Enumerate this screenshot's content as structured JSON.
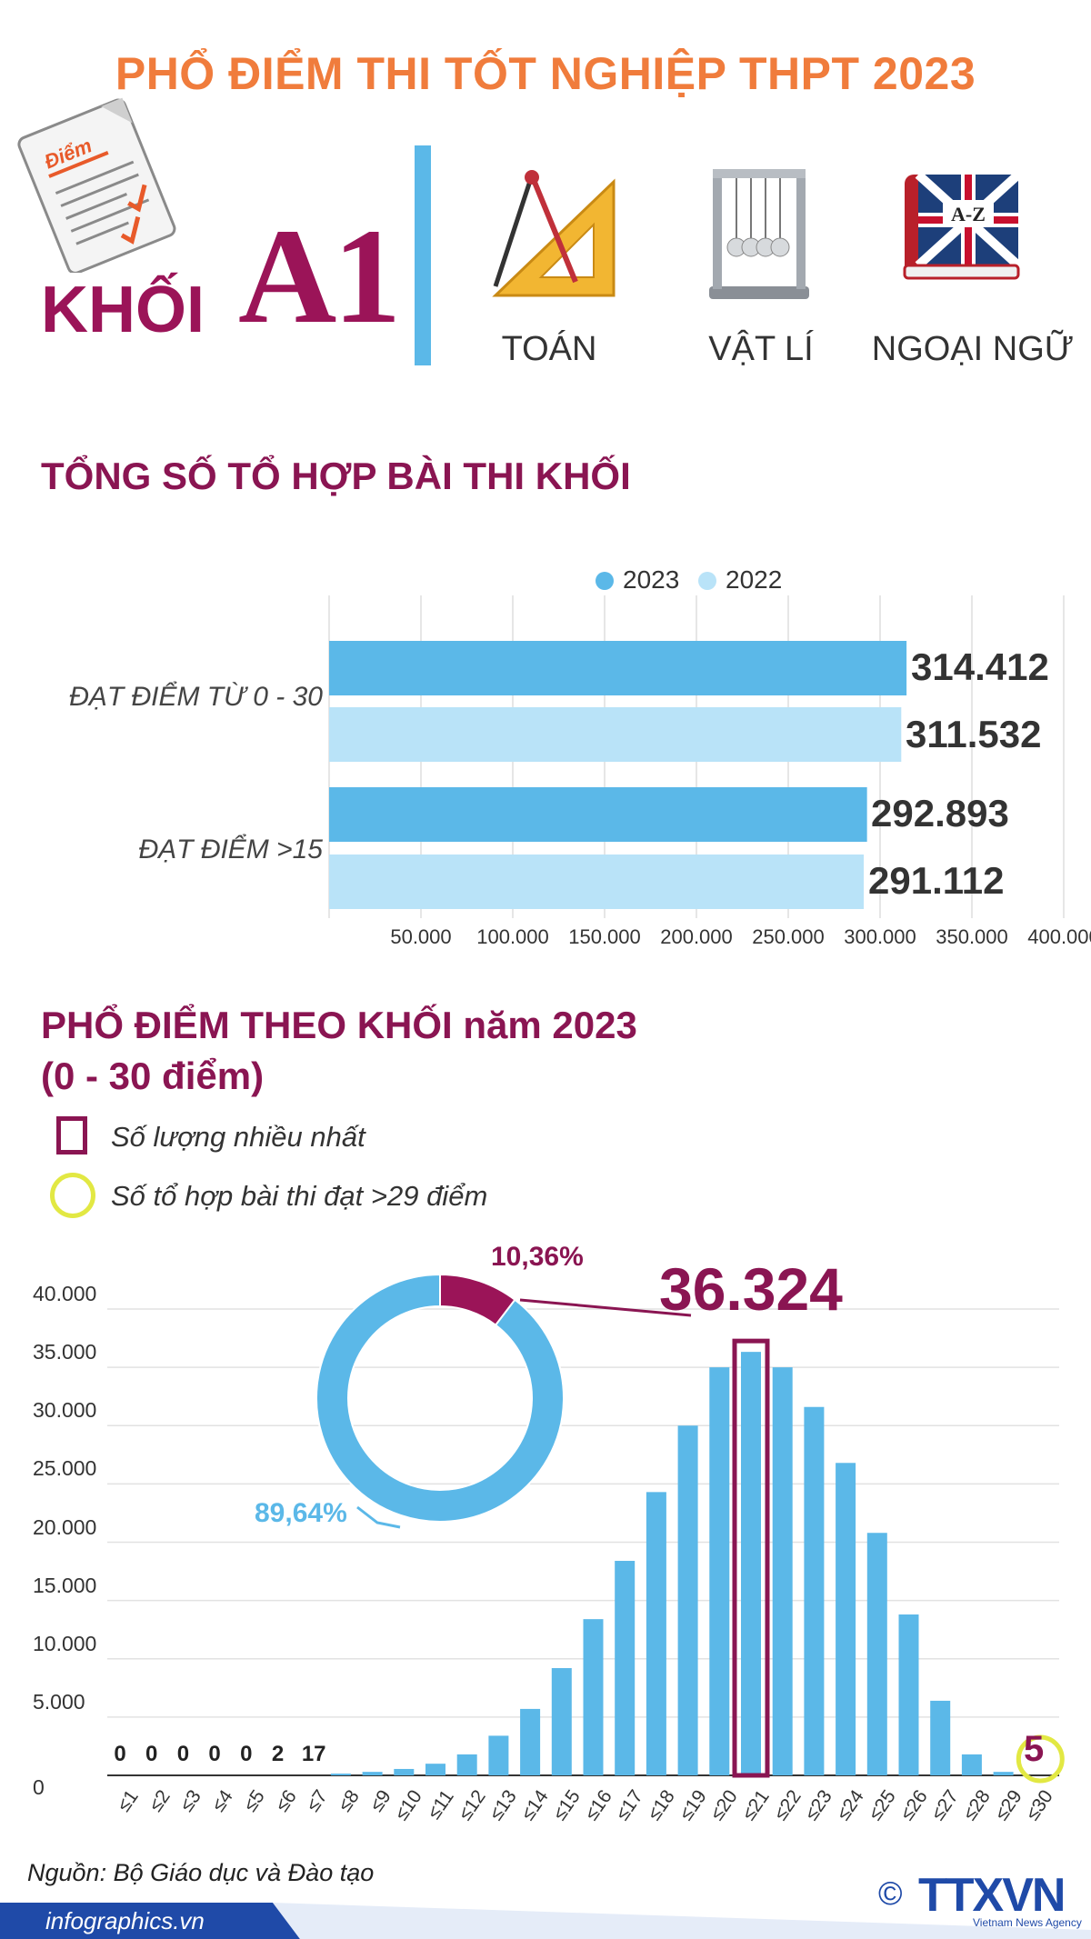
{
  "header": {
    "title": "PHỔ ĐIỂM THI TỐT NGHIỆP THPT 2023",
    "khoi_label": "KHỐI",
    "khoi_code": "A1",
    "paper_icon_text": "Điểm",
    "subjects": [
      {
        "label": "TOÁN",
        "icon": "compass-ruler-icon"
      },
      {
        "label": "VẬT LÍ",
        "icon": "newtons-cradle-icon"
      },
      {
        "label": "NGOẠI NGỮ",
        "icon": "dictionary-book-icon",
        "icon_text": "A-Z"
      }
    ]
  },
  "section1": {
    "title": "TỔNG SỐ TỔ HỢP BÀI THI KHỐI",
    "legend": [
      {
        "label": "2023",
        "color": "#5bb8e8"
      },
      {
        "label": "2022",
        "color": "#b9e3f8"
      }
    ]
  },
  "section2": {
    "title_line1": "PHỔ ĐIỂM THEO KHỐI năm 2023",
    "title_line2": "(0 - 30 điểm)",
    "note_max": "Số lượng nhiều nhất",
    "note_29": "Số tổ hợp bài thi đạt >29 điểm",
    "peak_label": "36.324",
    "over29_label": "5"
  },
  "chart_data": [
    {
      "type": "bar",
      "orientation": "horizontal",
      "categories": [
        "ĐẠT ĐIỂM TỪ 0 - 30",
        "ĐẠT ĐIỂM >15"
      ],
      "series": [
        {
          "name": "2023",
          "values": [
            314412,
            292893
          ],
          "labels": [
            "314.412",
            "292.893"
          ],
          "color": "#5bb8e8"
        },
        {
          "name": "2022",
          "values": [
            311532,
            291112
          ],
          "labels": [
            "311.532",
            "291.112"
          ],
          "color": "#b9e3f8"
        }
      ],
      "xlim": [
        0,
        400000
      ],
      "xticks": [
        "50.000",
        "100.000",
        "150.000",
        "200.000",
        "250.000",
        "300.000",
        "350.000",
        "400.000"
      ],
      "grid": true,
      "legend": "top"
    },
    {
      "type": "bar",
      "categories": [
        "≤1",
        "≤2",
        "≤3",
        "≤4",
        "≤5",
        "≤6",
        "≤7",
        "≤8",
        "≤9",
        "≤10",
        "≤11",
        "≤12",
        "≤13",
        "≤14",
        "≤15",
        "≤16",
        "≤17",
        "≤18",
        "≤19",
        "≤20",
        "≤21",
        "≤22",
        "≤23",
        "≤24",
        "≤25",
        "≤26",
        "≤27",
        "≤28",
        "≤29",
        "≤30"
      ],
      "values": [
        0,
        0,
        0,
        0,
        0,
        2,
        17,
        150,
        300,
        550,
        1000,
        1800,
        3400,
        5700,
        9200,
        13400,
        18400,
        24300,
        30000,
        35000,
        36324,
        35000,
        31600,
        26800,
        20800,
        13800,
        6400,
        1800,
        300,
        5
      ],
      "small_labels": [
        "0",
        "0",
        "0",
        "0",
        "0",
        "2",
        "17"
      ],
      "highlight_index": 20,
      "ylim": [
        0,
        40000
      ],
      "yticks": [
        "0",
        "5.000",
        "10.000",
        "15.000",
        "20.000",
        "25.000",
        "30.000",
        "35.000",
        "40.000"
      ],
      "grid": true,
      "color": "#5bb8e8",
      "highlight_color": "#8a1552"
    },
    {
      "type": "pie",
      "donut": true,
      "values": [
        10.36,
        89.64
      ],
      "labels": [
        "10,36%",
        "89,64%"
      ],
      "colors": [
        "#9b1458",
        "#5bb8e8"
      ]
    }
  ],
  "footer": {
    "source": "Nguồn: Bộ Giáo dục và Đào tạo",
    "website": "infographics.vn",
    "logo": "TTXVN",
    "copyright": "©",
    "agency": "Vietnam News Agency"
  }
}
